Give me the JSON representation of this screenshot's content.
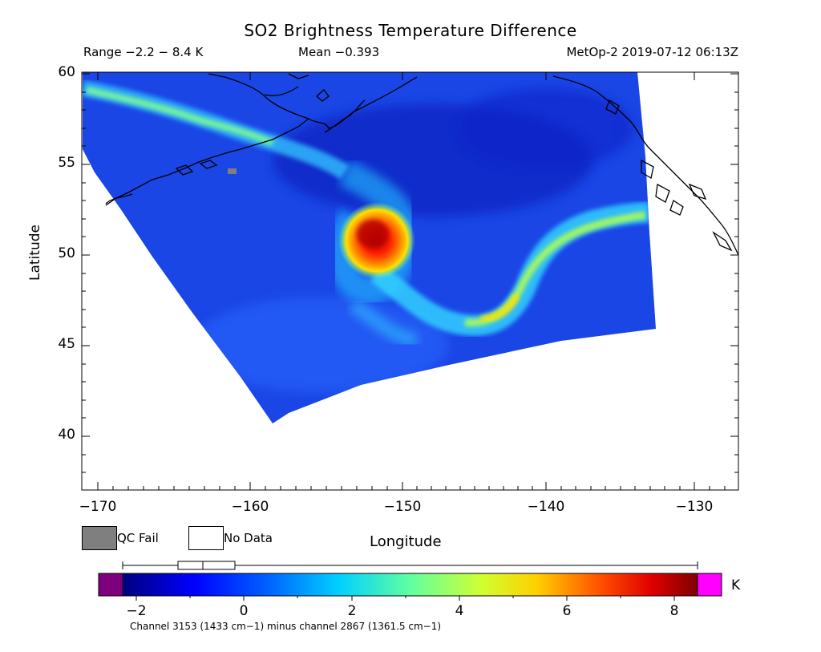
{
  "header": {
    "title": "SO2 Brightness Temperature Difference",
    "range": "Range −2.2 − 8.4 K",
    "mean": "Mean −0.393",
    "satellite_time": "MetOp-2 2019-07-12 06:13Z"
  },
  "map": {
    "x_axis_label": "Longitude",
    "y_axis_label": "Latitude",
    "x_ticks": [
      "−170",
      "−160",
      "−150",
      "−140",
      "−130"
    ],
    "y_ticks": [
      "60",
      "55",
      "50",
      "45",
      "40"
    ],
    "lon_range": [
      -171,
      -127
    ],
    "lat_range": [
      37,
      60
    ],
    "swath_corners": [
      [
        -171,
        56
      ],
      [
        -158.5,
        41
      ],
      [
        -133,
        46
      ],
      [
        -134,
        60
      ]
    ],
    "so2_plume_center": [
      -151.5,
      51
    ]
  },
  "legend": {
    "qc_fail": "QC Fail",
    "no_data": "No Data",
    "qc_fail_color": "#7f7f7f"
  },
  "colorbar": {
    "ticks": [
      "−2",
      "0",
      "2",
      "4",
      "6",
      "8"
    ],
    "range": [
      -2.2,
      8.4
    ],
    "unit": "K",
    "under_color": "#7f007f",
    "over_color": "#ff00ff",
    "box_plot": {
      "whisker_low": -2.2,
      "q1": -1.2,
      "median": -0.8,
      "q3": -0.2,
      "whisker_high": 8.4
    }
  },
  "footer": {
    "channel_note": "Channel 3153 (1433 cm−1) minus channel 2867 (1361.5 cm−1)"
  }
}
